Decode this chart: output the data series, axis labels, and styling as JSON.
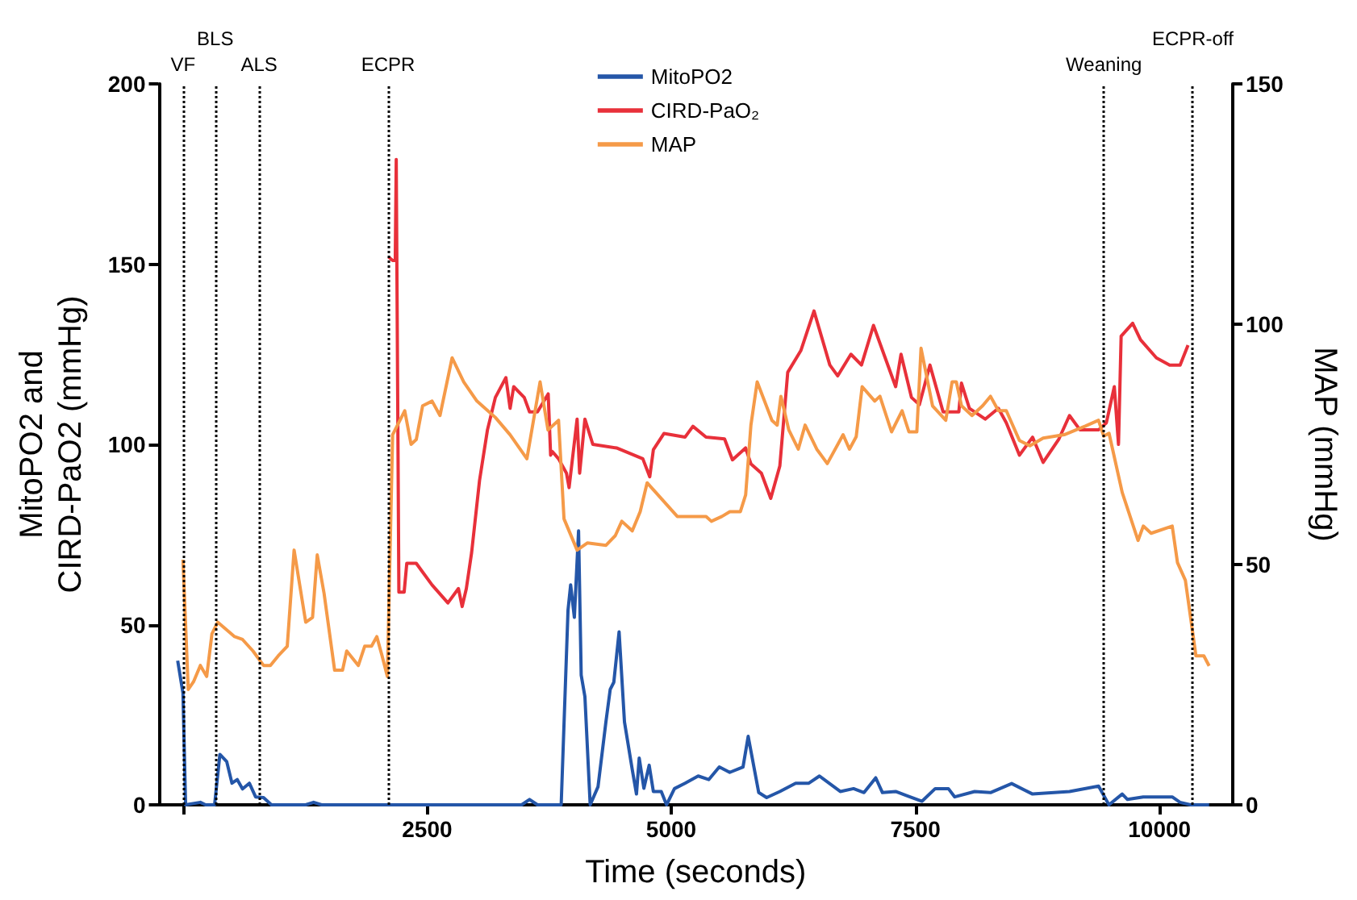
{
  "chart_data": {
    "type": "line",
    "xlabel": "Time (seconds)",
    "ylabel": "MitoPO2 and\nCIRD-PaO2 (mmHg)",
    "y2label": "MAP (mmHg)",
    "xlim": [
      -250,
      10750
    ],
    "xticks": [
      {
        "value": 0,
        "label": null
      },
      2500,
      5000,
      7500,
      10000
    ],
    "ylim": [
      0,
      200
    ],
    "yticks": [
      0,
      50,
      100,
      150,
      200
    ],
    "y2lim": [
      0,
      150
    ],
    "y2ticks": [
      0,
      50,
      100,
      150
    ],
    "grid": false,
    "legend": "top",
    "marker": "none",
    "line_style": "solid",
    "ref_lines": [
      {
        "axis": "x",
        "value": 0,
        "label": "VF",
        "color": "#000000",
        "line_style": "dotted"
      },
      {
        "axis": "x",
        "value": 330,
        "label": "BLS",
        "color": "#000000",
        "line_style": "dotted"
      },
      {
        "axis": "x",
        "value": 780,
        "label": "ALS",
        "color": "#000000",
        "line_style": "dotted"
      },
      {
        "axis": "x",
        "value": 2100,
        "label": "ECPR",
        "color": "#000000",
        "line_style": "dotted"
      },
      {
        "axis": "x",
        "value": 9430,
        "label": "Weaning",
        "color": "#000000",
        "line_style": "dotted"
      },
      {
        "axis": "x",
        "value": 10340,
        "label": "ECPR-off",
        "color": "#000000",
        "line_style": "dotted"
      }
    ],
    "series": [
      {
        "name": "MitoPO2",
        "color": "#2456a8",
        "x": [
          -54,
          0,
          27,
          178,
          232,
          324,
          378,
          448,
          502,
          556,
          610,
          680,
          744,
          825,
          906,
          1257,
          1338,
          1419,
          3468,
          3549,
          3630,
          3873,
          3943,
          3970,
          4008,
          4051,
          4078,
          4116,
          4170,
          4250,
          4331,
          4375,
          4412,
          4466,
          4521,
          4602,
          4644,
          4672,
          4720,
          4774,
          4817,
          4898,
          4952,
          5033,
          5141,
          5276,
          5384,
          5492,
          5599,
          5735,
          5788,
          5896,
          5977,
          6112,
          6274,
          6409,
          6518,
          6731,
          6867,
          6974,
          7094,
          7163,
          7298,
          7406,
          7568,
          7703,
          7838,
          7903,
          8107,
          8269,
          8486,
          8700,
          9078,
          9376,
          9482,
          9618,
          9672,
          9833,
          10130,
          10210,
          10318,
          10508
        ],
        "values": [
          40,
          31,
          0,
          0.7,
          0,
          0,
          14,
          12,
          6,
          7,
          4.4,
          6,
          2.2,
          2,
          0,
          0,
          0.7,
          0,
          0,
          1.5,
          0,
          0,
          54,
          61,
          52,
          76,
          36,
          30,
          0,
          5,
          23,
          32,
          34,
          48,
          23,
          9.6,
          3,
          13,
          4.6,
          11,
          3.7,
          3.7,
          0,
          4.5,
          6,
          8,
          7,
          10.5,
          9,
          10.5,
          19,
          3.4,
          2,
          3.7,
          6,
          6,
          8,
          3.7,
          4.5,
          3.4,
          7.5,
          3.4,
          3.7,
          2.6,
          1,
          4.5,
          4.5,
          2.2,
          3.7,
          3.4,
          5.9,
          3,
          3.7,
          5.2,
          0,
          3,
          1.5,
          2.2,
          2.2,
          0.7,
          0,
          0
        ]
      },
      {
        "name": "CIRD-PaO₂",
        "color": "#e8303a",
        "x": [
          2104,
          2147,
          2174,
          2184,
          2211,
          2265,
          2292,
          2389,
          2443,
          2551,
          2713,
          2821,
          2859,
          2902,
          2956,
          3037,
          3118,
          3199,
          3307,
          3350,
          3387,
          3495,
          3549,
          3630,
          3740,
          3765,
          3783,
          3846,
          3927,
          3954,
          4036,
          4062,
          4116,
          4197,
          4440,
          4709,
          4780,
          4817,
          4925,
          5141,
          5222,
          5356,
          5546,
          5627,
          5761,
          5816,
          5923,
          6019,
          6112,
          6193,
          6327,
          6462,
          6624,
          6705,
          6840,
          6948,
          7071,
          7191,
          7298,
          7353,
          7460,
          7541,
          7649,
          7784,
          7945,
          7972,
          8053,
          8215,
          8350,
          8431,
          8566,
          8700,
          8808,
          8970,
          9078,
          9186,
          9375,
          9456,
          9537,
          9580,
          9607,
          9725,
          9806,
          9968,
          10104,
          10211,
          10292
        ],
        "values": [
          152,
          151,
          151,
          179,
          59,
          59,
          67,
          67,
          65,
          61,
          56,
          60,
          55,
          60,
          70,
          90,
          104,
          113,
          118.5,
          110,
          116,
          113,
          109,
          109,
          114,
          97,
          98,
          96,
          92,
          88,
          107,
          92,
          107,
          100,
          99,
          96,
          91,
          98.5,
          103,
          102,
          105,
          102,
          101.5,
          95.7,
          99,
          94.6,
          92,
          85,
          94,
          120,
          126,
          137,
          122,
          119,
          125,
          122,
          133,
          124,
          116,
          125,
          113,
          111,
          122,
          109,
          109,
          117,
          110,
          107,
          110,
          106,
          97,
          102,
          95,
          101.5,
          108,
          104,
          104,
          106,
          116,
          100,
          130,
          133.6,
          129,
          124,
          122,
          122,
          127.5
        ]
      },
      {
        "name": "MAP",
        "color": "#f59a48",
        "axis": "y2",
        "x": [
          0,
          54,
          108,
          178,
          243,
          297,
          356,
          529,
          610,
          717,
          825,
          895,
          976,
          1068,
          1138,
          1257,
          1327,
          1375,
          1445,
          1553,
          1634,
          1677,
          1796,
          1861,
          1931,
          1985,
          2039,
          2093,
          2147,
          2271,
          2336,
          2389,
          2454,
          2551,
          2632,
          2756,
          2875,
          3010,
          3199,
          3350,
          3522,
          3657,
          3738,
          3846,
          3902,
          4036,
          4143,
          4332,
          4427,
          4494,
          4601,
          4682,
          4753,
          5062,
          5357,
          5411,
          5519,
          5600,
          5708,
          5762,
          5816,
          5880,
          6031,
          6085,
          6123,
          6204,
          6301,
          6371,
          6490,
          6598,
          6760,
          6825,
          6894,
          6955,
          7084,
          7137,
          7256,
          7364,
          7434,
          7515,
          7558,
          7676,
          7811,
          7876,
          7919,
          7973,
          8080,
          8188,
          8269,
          8350,
          8431,
          8566,
          8673,
          8808,
          9024,
          9240,
          9375,
          9429,
          9483,
          9618,
          9780,
          9834,
          9914,
          10130,
          10184,
          10265,
          10373,
          10454,
          10508
        ],
        "values": [
          51,
          24,
          25.6,
          29,
          26.7,
          35.6,
          38,
          35,
          34.4,
          32,
          29,
          29,
          31,
          33,
          53,
          38,
          39,
          52,
          44,
          28,
          28,
          32,
          29,
          33,
          33,
          35,
          31,
          26.7,
          77,
          82,
          75,
          76,
          83,
          84,
          81,
          93,
          88,
          84,
          80.6,
          77,
          72,
          88,
          78,
          80,
          59.5,
          53,
          54.5,
          54,
          56,
          59,
          57,
          61,
          67,
          60,
          60,
          59,
          60,
          61,
          61,
          64.5,
          79,
          88,
          80,
          79,
          85,
          78,
          74,
          79,
          74,
          71,
          77,
          74,
          76.6,
          87,
          84,
          85,
          77.6,
          82,
          77.6,
          77.6,
          95,
          83,
          80,
          88,
          88,
          83,
          81,
          83,
          85,
          82,
          82,
          75.8,
          74.7,
          76.3,
          77,
          78.8,
          80,
          76.7,
          77.3,
          65,
          55,
          58,
          56.5,
          58,
          50.4,
          46.7,
          31,
          31,
          28.9
        ]
      }
    ]
  }
}
